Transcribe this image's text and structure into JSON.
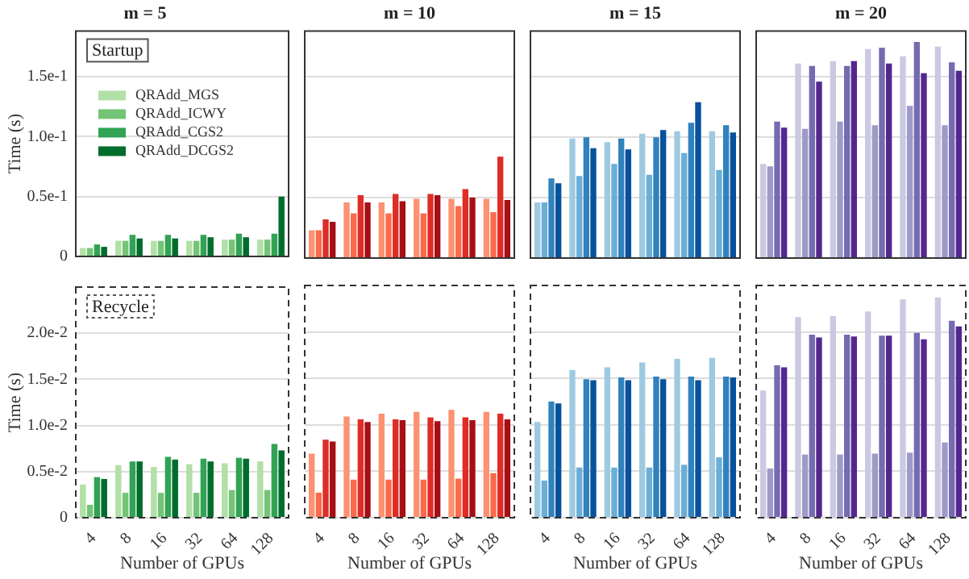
{
  "chart_data": [
    {
      "type": "bar",
      "title": "m = 5",
      "ylabel": "Time (s)",
      "legend": "top left",
      "annotations": [
        "Startup"
      ],
      "categories": [
        "4",
        "8",
        "16",
        "32",
        "64",
        "128"
      ],
      "ylim": [
        0,
        0.188
      ],
      "yticks": [
        0,
        {
          "value": 0.05,
          "label": "0.5e-1"
        },
        {
          "value": 0.1,
          "label": "1.0e-1"
        },
        {
          "value": 0.15,
          "label": "1.5e-1"
        }
      ],
      "grid": "y",
      "tick_labels": "y",
      "series": [
        {
          "name": "QRAdd_MGS",
          "color": "#b2e0a8",
          "values": [
            0.007,
            0.013,
            0.013,
            0.013,
            0.014,
            0.014
          ]
        },
        {
          "name": "QRAdd_ICWY",
          "color": "#74c476",
          "values": [
            0.007,
            0.013,
            0.013,
            0.013,
            0.014,
            0.014
          ]
        },
        {
          "name": "QRAdd_CGS2",
          "color": "#31a354",
          "values": [
            0.01,
            0.018,
            0.018,
            0.018,
            0.019,
            0.019
          ]
        },
        {
          "name": "QRAdd_DCGS2",
          "color": "#006d2c",
          "values": [
            0.008,
            0.015,
            0.015,
            0.016,
            0.016,
            0.05
          ]
        }
      ]
    },
    {
      "type": "bar",
      "title": "m = 10",
      "categories": [
        "4",
        "8",
        "16",
        "32",
        "64",
        "128"
      ],
      "ylim": [
        0,
        0.188
      ],
      "yticks": [
        {
          "value": 0,
          "label": null
        },
        {
          "value": 0.05,
          "label": null
        },
        {
          "value": 0.1,
          "label": null
        },
        {
          "value": 0.15,
          "label": null
        }
      ],
      "grid": "y",
      "tick_labels": false,
      "series": [
        {
          "color": "#fc9272",
          "values": [
            0.023,
            0.046,
            0.046,
            0.049,
            0.049,
            0.049
          ]
        },
        {
          "color": "#fb6a4a",
          "values": [
            0.023,
            0.037,
            0.037,
            0.037,
            0.043,
            0.038
          ]
        },
        {
          "color": "#de2d26",
          "values": [
            0.032,
            0.052,
            0.053,
            0.053,
            0.057,
            0.084
          ]
        },
        {
          "color": "#a50f15",
          "values": [
            0.03,
            0.046,
            0.047,
            0.052,
            0.05,
            0.048
          ]
        }
      ]
    },
    {
      "type": "bar",
      "title": "m = 15",
      "categories": [
        "4",
        "8",
        "16",
        "32",
        "64",
        "128"
      ],
      "ylim": [
        0,
        0.188
      ],
      "yticks": [
        {
          "value": 0,
          "label": null
        },
        {
          "value": 0.05,
          "label": null
        },
        {
          "value": 0.1,
          "label": null
        },
        {
          "value": 0.15,
          "label": null
        }
      ],
      "grid": "y",
      "tick_labels": false,
      "series": [
        {
          "color": "#9ecae1",
          "values": [
            0.046,
            0.099,
            0.096,
            0.103,
            0.105,
            0.105
          ]
        },
        {
          "color": "#6baed6",
          "values": [
            0.046,
            0.068,
            0.078,
            0.069,
            0.087,
            0.073
          ]
        },
        {
          "color": "#3182bd",
          "values": [
            0.066,
            0.1,
            0.099,
            0.1,
            0.112,
            0.11
          ]
        },
        {
          "color": "#08519c",
          "values": [
            0.062,
            0.091,
            0.09,
            0.106,
            0.129,
            0.104
          ]
        }
      ]
    },
    {
      "type": "bar",
      "title": "m = 20",
      "categories": [
        "4",
        "8",
        "16",
        "32",
        "64",
        "128"
      ],
      "ylim": [
        0,
        0.188
      ],
      "yticks": [
        {
          "value": 0,
          "label": null
        },
        {
          "value": 0.05,
          "label": null
        },
        {
          "value": 0.1,
          "label": null
        },
        {
          "value": 0.15,
          "label": null
        }
      ],
      "grid": "y",
      "tick_labels": false,
      "series": [
        {
          "color": "#cbc9e2",
          "values": [
            0.078,
            0.161,
            0.163,
            0.173,
            0.167,
            0.175
          ]
        },
        {
          "color": "#9e9ac8",
          "values": [
            0.076,
            0.107,
            0.113,
            0.11,
            0.126,
            0.11
          ]
        },
        {
          "color": "#756bb1",
          "values": [
            0.113,
            0.159,
            0.159,
            0.174,
            0.179,
            0.162
          ]
        },
        {
          "color": "#54278f",
          "values": [
            0.108,
            0.146,
            0.163,
            0.161,
            0.153,
            0.155
          ]
        }
      ]
    },
    {
      "type": "bar",
      "ylabel": "Time (s)",
      "xlabel": "Number of GPUs",
      "annotations": [
        "Recycle"
      ],
      "categories": [
        "4",
        "8",
        "16",
        "32",
        "64",
        "128"
      ],
      "ylim": [
        0,
        0.025
      ],
      "yticks": [
        0,
        {
          "value": 0.005,
          "label": "0.5e-2"
        },
        {
          "value": 0.01,
          "label": "1.0e-2"
        },
        {
          "value": 0.015,
          "label": "1.5e-2"
        },
        {
          "value": 0.02,
          "label": "2.0e-2"
        }
      ],
      "grid": "y",
      "series": [
        {
          "color": "#b2e0a8",
          "values": [
            0.0036,
            0.0057,
            0.0055,
            0.0058,
            0.0059,
            0.0061
          ]
        },
        {
          "color": "#74c476",
          "values": [
            0.0014,
            0.0027,
            0.0027,
            0.0027,
            0.003,
            0.003
          ]
        },
        {
          "color": "#31a354",
          "values": [
            0.0044,
            0.0061,
            0.0066,
            0.0064,
            0.0065,
            0.008
          ]
        },
        {
          "color": "#006d2c",
          "values": [
            0.0042,
            0.0061,
            0.0063,
            0.0061,
            0.0064,
            0.0073
          ]
        }
      ]
    },
    {
      "type": "bar",
      "xlabel": "Number of GPUs",
      "categories": [
        "4",
        "8",
        "16",
        "32",
        "64",
        "128"
      ],
      "ylim": [
        0,
        0.025
      ],
      "yticks": [
        {
          "value": 0,
          "label": null
        },
        {
          "value": 0.005,
          "label": null
        },
        {
          "value": 0.01,
          "label": null
        },
        {
          "value": 0.015,
          "label": null
        },
        {
          "value": 0.02,
          "label": null
        }
      ],
      "grid": "y",
      "tick_labels": "x",
      "series": [
        {
          "color": "#fc9272",
          "values": [
            0.0069,
            0.0109,
            0.0112,
            0.0114,
            0.0116,
            0.0114
          ]
        },
        {
          "color": "#fb6a4a",
          "values": [
            0.0027,
            0.0041,
            0.0041,
            0.0041,
            0.0042,
            0.0048
          ]
        },
        {
          "color": "#de2d26",
          "values": [
            0.0084,
            0.0106,
            0.0106,
            0.0108,
            0.0108,
            0.0112
          ]
        },
        {
          "color": "#a50f15",
          "values": [
            0.0082,
            0.0103,
            0.0105,
            0.0104,
            0.0105,
            0.0106
          ]
        }
      ]
    },
    {
      "type": "bar",
      "xlabel": "Number of GPUs",
      "categories": [
        "4",
        "8",
        "16",
        "32",
        "64",
        "128"
      ],
      "ylim": [
        0,
        0.025
      ],
      "yticks": [
        {
          "value": 0,
          "label": null
        },
        {
          "value": 0.005,
          "label": null
        },
        {
          "value": 0.01,
          "label": null
        },
        {
          "value": 0.015,
          "label": null
        },
        {
          "value": 0.02,
          "label": null
        }
      ],
      "grid": "y",
      "tick_labels": "x",
      "series": [
        {
          "color": "#9ecae1",
          "values": [
            0.0103,
            0.0159,
            0.0162,
            0.0167,
            0.0171,
            0.0172
          ]
        },
        {
          "color": "#6baed6",
          "values": [
            0.004,
            0.0054,
            0.0054,
            0.0054,
            0.0057,
            0.0065
          ]
        },
        {
          "color": "#3182bd",
          "values": [
            0.0125,
            0.0149,
            0.0151,
            0.0152,
            0.0152,
            0.0152
          ]
        },
        {
          "color": "#08519c",
          "values": [
            0.0123,
            0.0148,
            0.0148,
            0.0149,
            0.0148,
            0.0151
          ]
        }
      ]
    },
    {
      "type": "bar",
      "xlabel": "Number of GPUs",
      "categories": [
        "4",
        "8",
        "16",
        "32",
        "64",
        "128"
      ],
      "ylim": [
        0,
        0.025
      ],
      "yticks": [
        {
          "value": 0,
          "label": null
        },
        {
          "value": 0.005,
          "label": null
        },
        {
          "value": 0.01,
          "label": null
        },
        {
          "value": 0.015,
          "label": null
        },
        {
          "value": 0.02,
          "label": null
        }
      ],
      "grid": "y",
      "tick_labels": "x",
      "series": [
        {
          "color": "#cbc9e2",
          "values": [
            0.0137,
            0.0216,
            0.0217,
            0.0222,
            0.0235,
            0.0237
          ]
        },
        {
          "color": "#9e9ac8",
          "values": [
            0.0053,
            0.0068,
            0.0068,
            0.0069,
            0.007,
            0.0081
          ]
        },
        {
          "color": "#756bb1",
          "values": [
            0.0164,
            0.0197,
            0.0197,
            0.0196,
            0.0199,
            0.0212
          ]
        },
        {
          "color": "#54278f",
          "values": [
            0.0162,
            0.0194,
            0.0195,
            0.0196,
            0.0192,
            0.0206
          ]
        }
      ]
    }
  ]
}
